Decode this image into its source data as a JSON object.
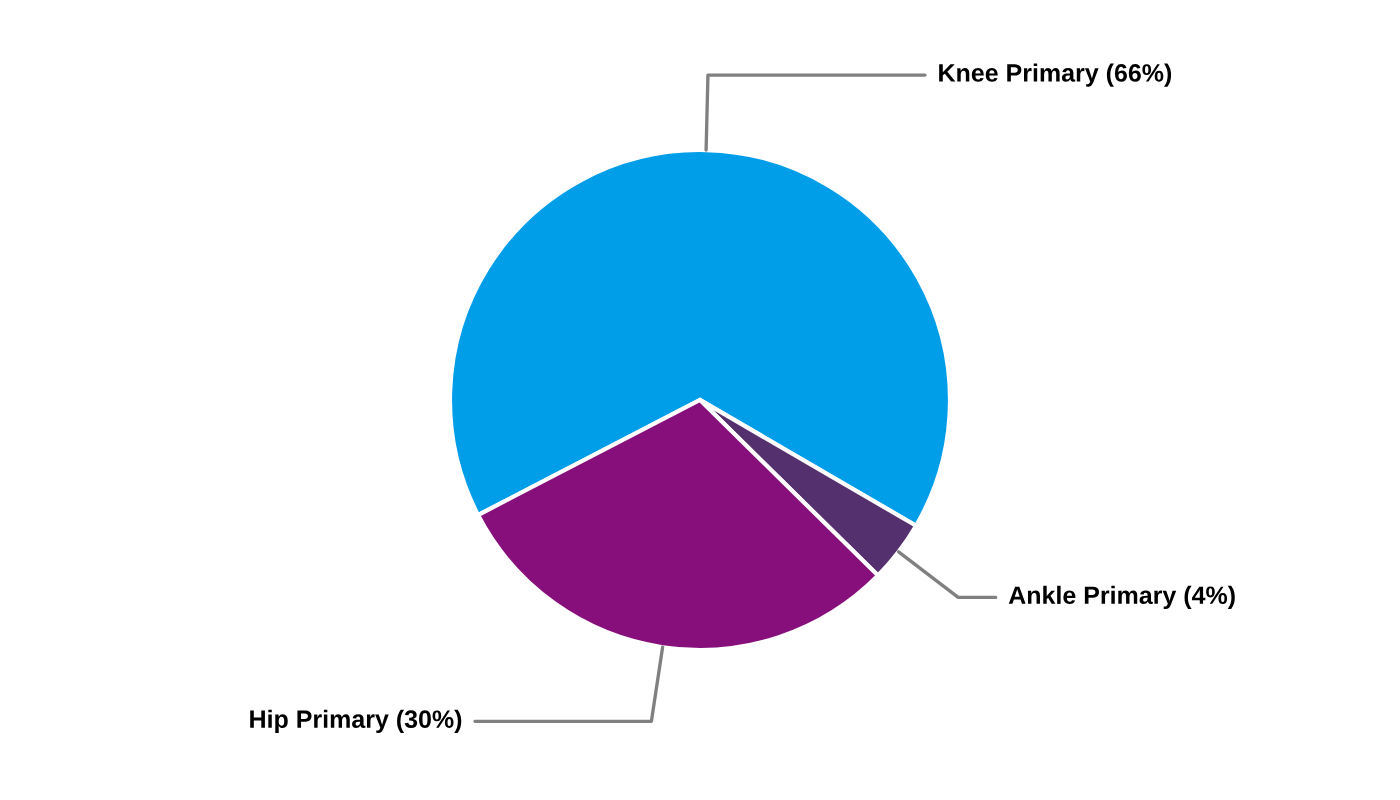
{
  "chart_data": {
    "type": "pie",
    "categories": [
      "Knee Primary (66%)",
      "Ankle Primary (4%)",
      "Hip Primary (30%)"
    ],
    "values": [
      66,
      4,
      30
    ],
    "colors": [
      "#009ee9",
      "#55306e",
      "#870f7c"
    ],
    "legend": false
  }
}
